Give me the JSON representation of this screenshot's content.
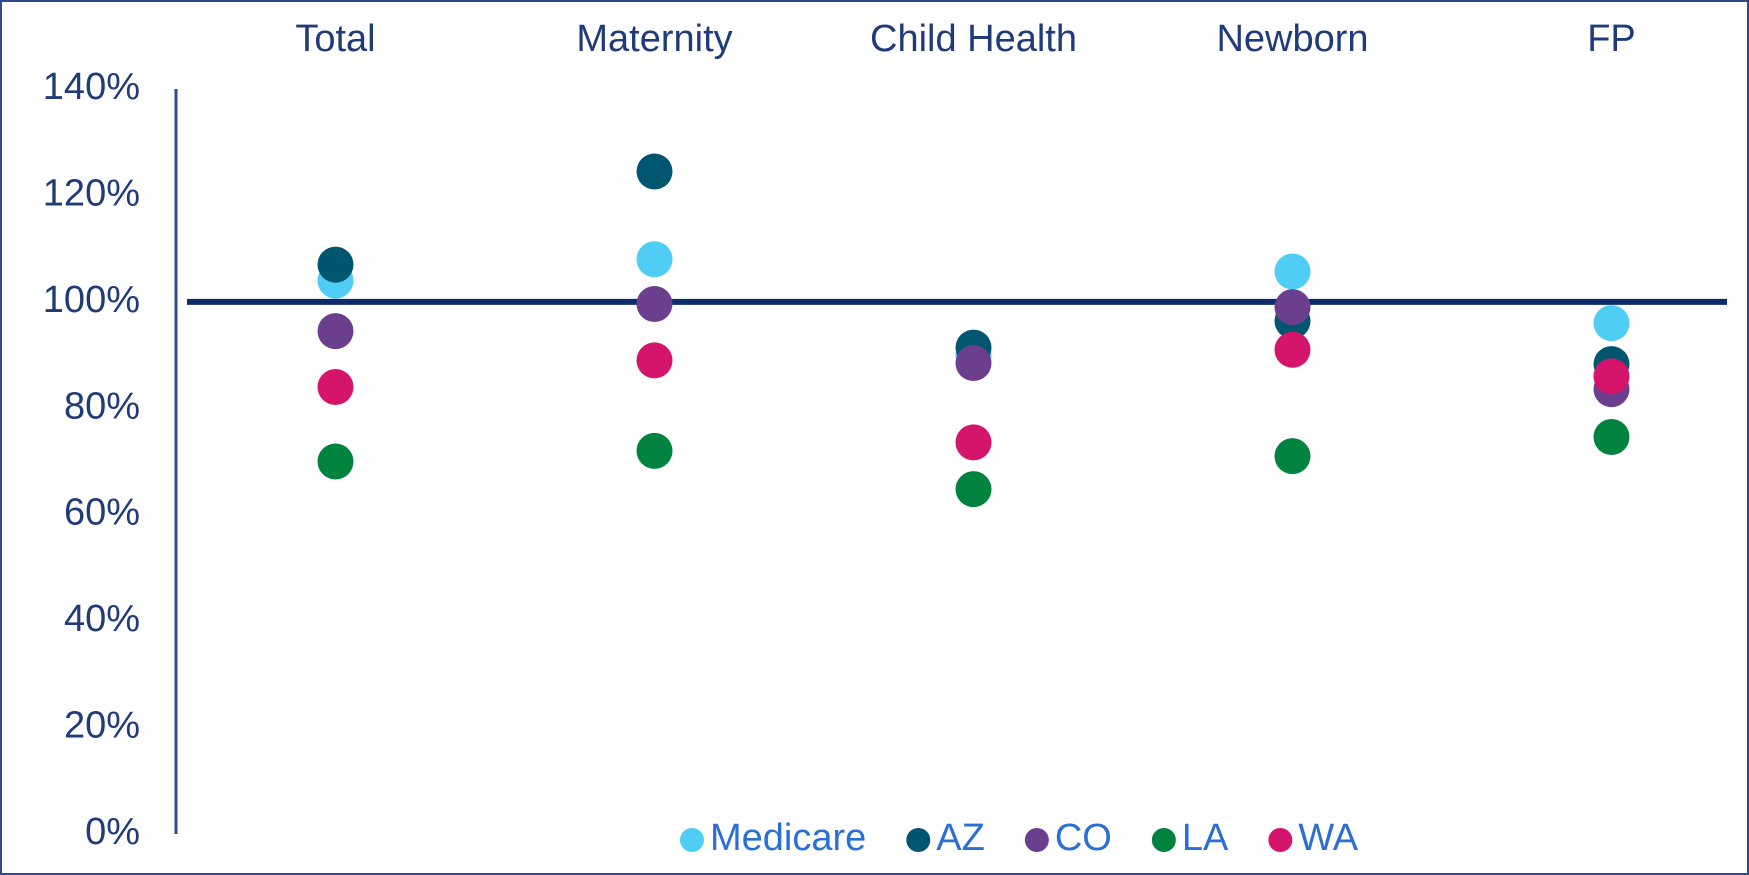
{
  "chart_data": {
    "type": "dot",
    "categories": [
      "Total",
      "Maternity",
      "Child Health",
      "Newborn",
      "FP"
    ],
    "series": [
      {
        "name": "Medicare",
        "color": "#4fcdf4",
        "values": [
          104,
          108,
          90,
          105.7,
          96
        ]
      },
      {
        "name": "AZ",
        "color": "#00566f",
        "values": [
          107,
          124.5,
          91.4,
          96.4,
          88.3
        ]
      },
      {
        "name": "CO",
        "color": "#6b3e8e",
        "values": [
          94.5,
          99.6,
          88.5,
          99,
          83.6
        ]
      },
      {
        "name": "LA",
        "color": "#00833e",
        "values": [
          70,
          72,
          64.8,
          71,
          74.6
        ]
      },
      {
        "name": "WA",
        "color": "#d5146b",
        "values": [
          84,
          89,
          73.6,
          91,
          86
        ]
      }
    ],
    "ylim": [
      0,
      140
    ],
    "yticks": [
      {
        "value": 0,
        "label": "0%"
      },
      {
        "value": 20,
        "label": "20%"
      },
      {
        "value": 40,
        "label": "40%"
      },
      {
        "value": 60,
        "label": "60%"
      },
      {
        "value": 80,
        "label": "80%"
      },
      {
        "value": 100,
        "label": "100%"
      },
      {
        "value": 120,
        "label": "120%"
      },
      {
        "value": 140,
        "label": "140%"
      }
    ],
    "reference_line": {
      "value": 100,
      "color": "#0d2c6c"
    },
    "legend": "bottom"
  }
}
